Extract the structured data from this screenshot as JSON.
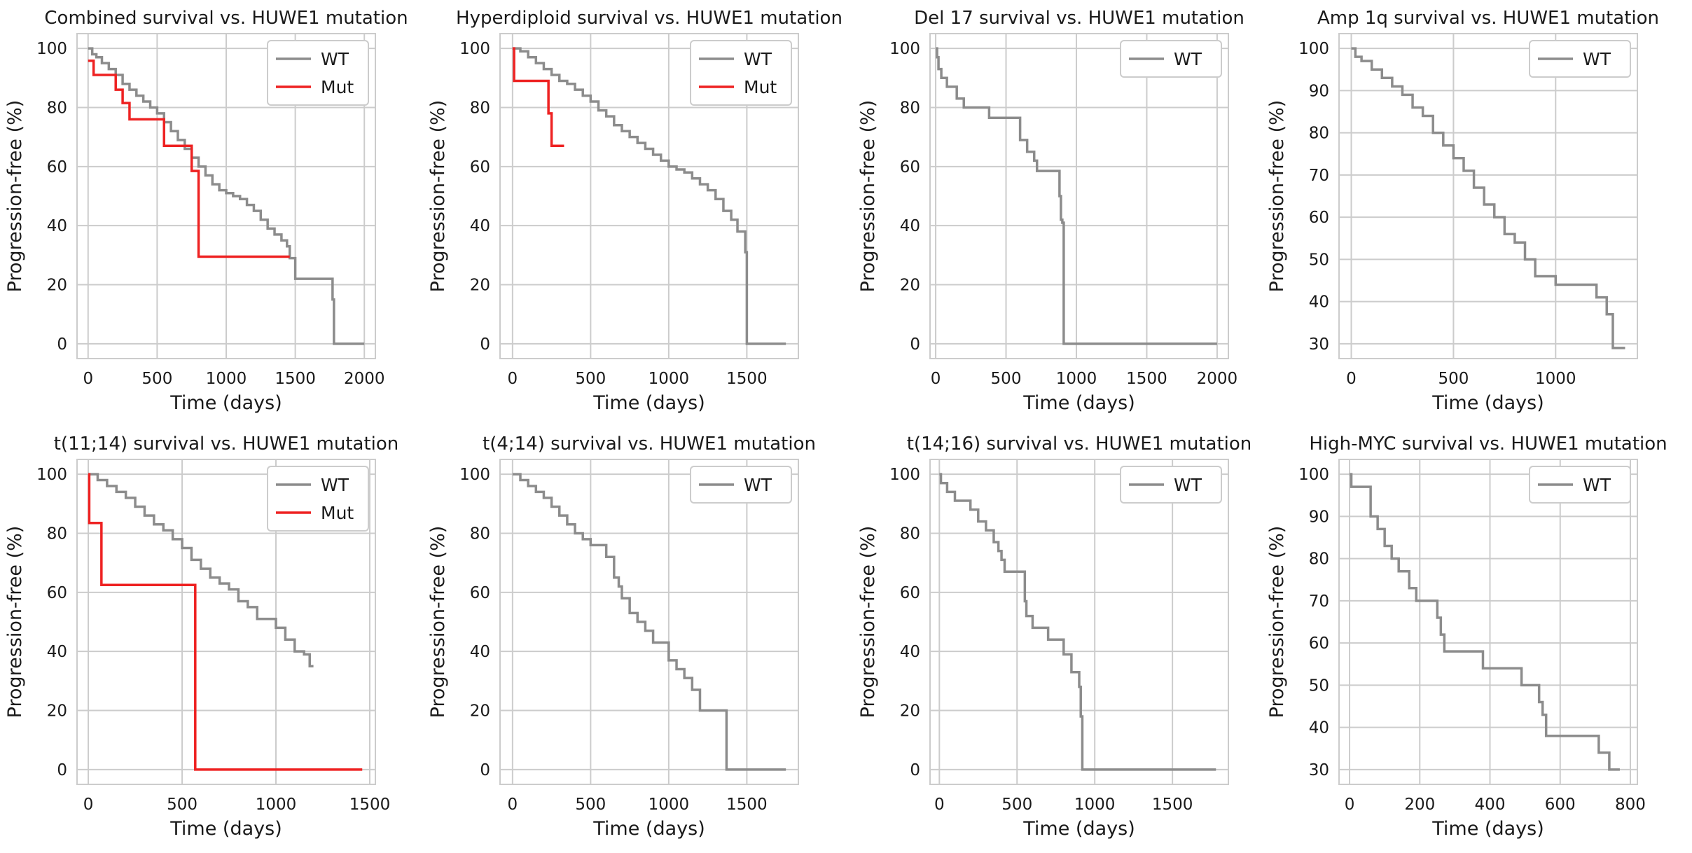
{
  "chart_data": [
    {
      "type": "line",
      "title": "Combined survival vs. HUWE1 mutation",
      "xlabel": "Time (days)",
      "ylabel": "Progression-free (%)",
      "xlim": [
        -80,
        2080
      ],
      "ylim": [
        -5,
        105
      ],
      "xticks": [
        0,
        500,
        1000,
        1500,
        2000
      ],
      "yticks": [
        0,
        20,
        40,
        60,
        80,
        100
      ],
      "series": [
        {
          "name": "WT",
          "color": "#8c8c8c",
          "x": [
            0,
            30,
            60,
            100,
            150,
            200,
            250,
            300,
            350,
            400,
            450,
            500,
            550,
            600,
            650,
            700,
            750,
            800,
            850,
            900,
            950,
            1000,
            1050,
            1100,
            1150,
            1200,
            1250,
            1300,
            1350,
            1400,
            1440,
            1460,
            1500,
            1760,
            1770,
            1780,
            2000
          ],
          "y": [
            100,
            98,
            97,
            95,
            93,
            91,
            88,
            86,
            84,
            82,
            80,
            78,
            75,
            72,
            69,
            66,
            63,
            60,
            57,
            54,
            52,
            51,
            50,
            49,
            47,
            45,
            42,
            39,
            37,
            35,
            33,
            29,
            22,
            22,
            15,
            0,
            0
          ]
        },
        {
          "name": "Mut",
          "color": "#ee2222",
          "x": [
            0,
            40,
            200,
            250,
            300,
            550,
            750,
            800,
            1460
          ],
          "y": [
            95.8,
            91,
            86,
            81.5,
            76,
            67,
            58.5,
            29.5,
            29.5
          ]
        }
      ]
    },
    {
      "type": "line",
      "title": "Hyperdiploid survival vs. HUWE1 mutation",
      "xlabel": "Time (days)",
      "ylabel": "Progression-free (%)",
      "xlim": [
        -80,
        1830
      ],
      "ylim": [
        -5,
        105
      ],
      "xticks": [
        0,
        500,
        1000,
        1500
      ],
      "yticks": [
        0,
        20,
        40,
        60,
        80,
        100
      ],
      "series": [
        {
          "name": "WT",
          "color": "#8c8c8c",
          "x": [
            0,
            50,
            100,
            150,
            200,
            250,
            300,
            350,
            400,
            450,
            500,
            550,
            600,
            650,
            700,
            750,
            800,
            850,
            900,
            950,
            1000,
            1050,
            1100,
            1150,
            1200,
            1250,
            1300,
            1350,
            1400,
            1440,
            1490,
            1500,
            1750
          ],
          "y": [
            100,
            99,
            97,
            95,
            93,
            91,
            89,
            88,
            86,
            84,
            82,
            79,
            77,
            74,
            72,
            70,
            68,
            66,
            64,
            62,
            60,
            59,
            58,
            56,
            54,
            52,
            49,
            45,
            42,
            38,
            31,
            0,
            0
          ]
        },
        {
          "name": "Mut",
          "color": "#ee2222",
          "x": [
            0,
            10,
            200,
            230,
            250,
            330
          ],
          "y": [
            100,
            89,
            89,
            78,
            67,
            67
          ]
        }
      ]
    },
    {
      "type": "line",
      "title": "Del 17 survival vs. HUWE1 mutation",
      "xlabel": "Time (days)",
      "ylabel": "Progression-free (%)",
      "xlim": [
        -40,
        2080
      ],
      "ylim": [
        -5,
        105
      ],
      "xticks": [
        0,
        500,
        1000,
        1500,
        2000
      ],
      "yticks": [
        0,
        20,
        40,
        60,
        80,
        100
      ],
      "series": [
        {
          "name": "WT",
          "color": "#8c8c8c",
          "x": [
            0,
            10,
            20,
            40,
            80,
            150,
            200,
            250,
            380,
            600,
            650,
            700,
            720,
            880,
            890,
            900,
            910,
            2000
          ],
          "y": [
            100,
            97,
            93,
            90,
            87,
            83,
            80,
            80,
            76.5,
            69,
            65,
            62,
            58.5,
            50,
            42,
            41,
            0,
            0
          ]
        }
      ]
    },
    {
      "type": "line",
      "title": "Amp 1q survival vs. HUWE1 mutation",
      "xlabel": "Time (days)",
      "ylabel": "Progression-free (%)",
      "xlim": [
        -60,
        1400
      ],
      "ylim": [
        26.5,
        103.5
      ],
      "xticks": [
        0,
        500,
        1000
      ],
      "yticks": [
        30,
        40,
        50,
        60,
        70,
        80,
        90,
        100
      ],
      "series": [
        {
          "name": "WT",
          "color": "#8c8c8c",
          "x": [
            0,
            20,
            50,
            100,
            150,
            200,
            250,
            300,
            350,
            400,
            450,
            500,
            550,
            600,
            650,
            700,
            750,
            800,
            850,
            900,
            1000,
            1100,
            1200,
            1250,
            1280,
            1340
          ],
          "y": [
            100,
            98,
            97,
            95,
            93,
            91,
            89,
            86,
            84,
            80,
            77,
            74,
            71,
            67,
            63,
            60,
            56,
            54,
            50,
            46,
            44,
            44,
            41,
            37,
            29,
            29
          ]
        }
      ]
    },
    {
      "type": "line",
      "title": "t(11;14) survival vs. HUWE1 mutation",
      "xlabel": "Time (days)",
      "ylabel": "Progression-free (%)",
      "xlim": [
        -60,
        1530
      ],
      "ylim": [
        -5,
        105
      ],
      "xticks": [
        0,
        500,
        1000,
        1500
      ],
      "yticks": [
        0,
        20,
        40,
        60,
        80,
        100
      ],
      "series": [
        {
          "name": "WT",
          "color": "#8c8c8c",
          "x": [
            0,
            50,
            100,
            150,
            200,
            250,
            300,
            350,
            400,
            450,
            500,
            550,
            600,
            650,
            700,
            750,
            800,
            850,
            900,
            1000,
            1050,
            1100,
            1150,
            1180,
            1200
          ],
          "y": [
            100,
            98,
            96,
            94,
            92,
            89,
            86,
            83,
            81,
            78,
            75,
            71,
            68,
            65,
            63,
            61,
            57,
            55,
            51,
            48,
            44,
            40,
            39,
            35,
            35
          ]
        },
        {
          "name": "Mut",
          "color": "#ee2222",
          "x": [
            0,
            5,
            70,
            560,
            570,
            1460
          ],
          "y": [
            100,
            83.5,
            62.5,
            62.5,
            0,
            0
          ]
        }
      ]
    },
    {
      "type": "line",
      "title": "t(4;14) survival vs. HUWE1 mutation",
      "xlabel": "Time (days)",
      "ylabel": "Progression-free (%)",
      "xlim": [
        -80,
        1830
      ],
      "ylim": [
        -5,
        105
      ],
      "xticks": [
        0,
        500,
        1000,
        1500
      ],
      "yticks": [
        0,
        20,
        40,
        60,
        80,
        100
      ],
      "series": [
        {
          "name": "WT",
          "color": "#8c8c8c",
          "x": [
            0,
            50,
            100,
            150,
            200,
            250,
            300,
            350,
            400,
            450,
            500,
            550,
            600,
            650,
            680,
            700,
            750,
            800,
            850,
            900,
            1000,
            1050,
            1100,
            1150,
            1200,
            1360,
            1370,
            1750
          ],
          "y": [
            100,
            98,
            96,
            94,
            92,
            89,
            86,
            83,
            80,
            78,
            76,
            76,
            72,
            65,
            62,
            58,
            53,
            50,
            47,
            43,
            37,
            34,
            31,
            27,
            20,
            20,
            0,
            0
          ]
        }
      ]
    },
    {
      "type": "line",
      "title": "t(14;16) survival vs. HUWE1 mutation",
      "xlabel": "Time (days)",
      "ylabel": "Progression-free (%)",
      "xlim": [
        -60,
        1860
      ],
      "ylim": [
        -5,
        105
      ],
      "xticks": [
        0,
        500,
        1000,
        1500
      ],
      "yticks": [
        0,
        20,
        40,
        60,
        80,
        100
      ],
      "series": [
        {
          "name": "WT",
          "color": "#8c8c8c",
          "x": [
            0,
            10,
            50,
            100,
            200,
            250,
            300,
            350,
            380,
            400,
            420,
            550,
            560,
            600,
            700,
            800,
            850,
            900,
            910,
            920,
            1780
          ],
          "y": [
            100,
            97,
            94,
            91,
            88,
            84,
            81,
            77,
            74,
            71,
            67,
            57,
            52,
            48,
            44,
            39,
            33,
            28,
            18,
            0,
            0
          ]
        }
      ]
    },
    {
      "type": "line",
      "title": "High-MYC survival vs. HUWE1 mutation",
      "xlabel": "Time (days)",
      "ylabel": "Progression-free (%)",
      "xlim": [
        -30,
        820
      ],
      "ylim": [
        26.5,
        103.5
      ],
      "xticks": [
        0,
        200,
        400,
        600,
        800
      ],
      "yticks": [
        30,
        40,
        50,
        60,
        70,
        80,
        90,
        100
      ],
      "series": [
        {
          "name": "WT",
          "color": "#8c8c8c",
          "x": [
            0,
            5,
            60,
            80,
            100,
            120,
            140,
            170,
            190,
            250,
            260,
            270,
            360,
            380,
            470,
            490,
            540,
            550,
            560,
            710,
            740,
            770
          ],
          "y": [
            100,
            97,
            90,
            87,
            83,
            80,
            77,
            73,
            70,
            66,
            62,
            58,
            58,
            54,
            54,
            50,
            46,
            43,
            38,
            34,
            30,
            30
          ]
        }
      ]
    }
  ]
}
